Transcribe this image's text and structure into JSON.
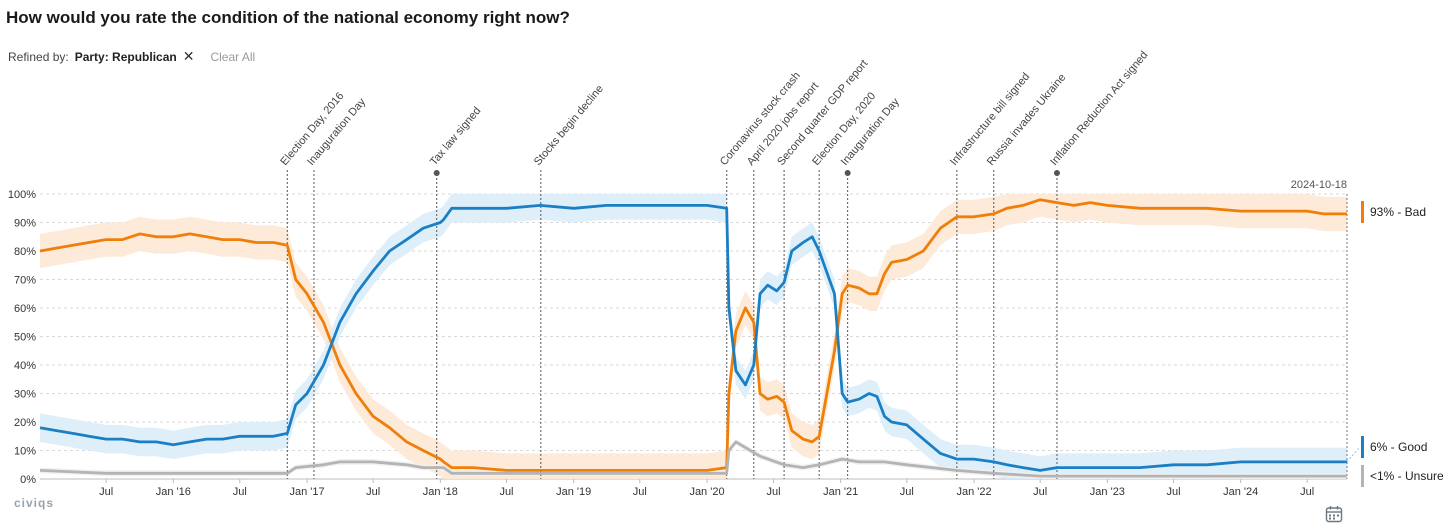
{
  "title": "How would you rate the condition of the national economy right now?",
  "filters": {
    "refined_by_label": "Refined by:",
    "chip_label": "Party: Republican",
    "clear_all": "Clear All"
  },
  "logo_text": "civiqs",
  "chart_data": {
    "type": "line",
    "x_start": "2015-01-01",
    "x_end": "2024-10-18",
    "ylim": [
      0,
      100
    ],
    "y_ticks": [
      "0%",
      "10%",
      "20%",
      "30%",
      "40%",
      "50%",
      "60%",
      "70%",
      "80%",
      "90%",
      "100%"
    ],
    "x_ticks": [
      {
        "date": "2015-07-01",
        "label": "Jul"
      },
      {
        "date": "2016-01-01",
        "label": "Jan '16"
      },
      {
        "date": "2016-07-01",
        "label": "Jul"
      },
      {
        "date": "2017-01-01",
        "label": "Jan '17"
      },
      {
        "date": "2017-07-01",
        "label": "Jul"
      },
      {
        "date": "2018-01-01",
        "label": "Jan '18"
      },
      {
        "date": "2018-07-01",
        "label": "Jul"
      },
      {
        "date": "2019-01-01",
        "label": "Jan '19"
      },
      {
        "date": "2019-07-01",
        "label": "Jul"
      },
      {
        "date": "2020-01-01",
        "label": "Jan '20"
      },
      {
        "date": "2020-07-01",
        "label": "Jul"
      },
      {
        "date": "2021-01-01",
        "label": "Jan '21"
      },
      {
        "date": "2021-07-01",
        "label": "Jul"
      },
      {
        "date": "2022-01-01",
        "label": "Jan '22"
      },
      {
        "date": "2022-07-01",
        "label": "Jul"
      },
      {
        "date": "2023-01-01",
        "label": "Jan '23"
      },
      {
        "date": "2023-07-01",
        "label": "Jul"
      },
      {
        "date": "2024-01-01",
        "label": "Jan '24"
      },
      {
        "date": "2024-07-01",
        "label": "Jul"
      }
    ],
    "events": [
      {
        "date": "2016-11-08",
        "label": "Election Day, 2016"
      },
      {
        "date": "2017-01-20",
        "label": "Inauguration Day"
      },
      {
        "date": "2017-12-22",
        "label": "Tax law signed",
        "dot": true
      },
      {
        "date": "2018-10-03",
        "label": "Stocks begin decline"
      },
      {
        "date": "2020-02-24",
        "label": "Coronavirus stock crash"
      },
      {
        "date": "2020-05-08",
        "label": "April 2020 jobs report"
      },
      {
        "date": "2020-07-30",
        "label": "Second quarter GDP report"
      },
      {
        "date": "2020-11-03",
        "label": "Election Day, 2020"
      },
      {
        "date": "2021-01-20",
        "label": "Inauguration Day",
        "dot": true
      },
      {
        "date": "2021-11-15",
        "label": "Infrastructure bill signed"
      },
      {
        "date": "2022-02-24",
        "label": "Russia invades Ukraine"
      },
      {
        "date": "2022-08-16",
        "label": "Inflation Reduction Act signed",
        "dot": true
      }
    ],
    "end_marker_label": "2024-10-18",
    "series": [
      {
        "name": "Bad",
        "end_label": "93% - Bad",
        "color": "#f07f09",
        "band_color": "#fde8d4",
        "band": 6,
        "points": [
          [
            "2015-01-01",
            80
          ],
          [
            "2015-02-15",
            81
          ],
          [
            "2015-04-01",
            82
          ],
          [
            "2015-05-15",
            83
          ],
          [
            "2015-07-01",
            84
          ],
          [
            "2015-08-15",
            84
          ],
          [
            "2015-10-01",
            86
          ],
          [
            "2015-11-15",
            85
          ],
          [
            "2016-01-01",
            85
          ],
          [
            "2016-02-15",
            86
          ],
          [
            "2016-04-01",
            85
          ],
          [
            "2016-05-15",
            84
          ],
          [
            "2016-07-01",
            84
          ],
          [
            "2016-08-15",
            83
          ],
          [
            "2016-10-01",
            83
          ],
          [
            "2016-11-08",
            82
          ],
          [
            "2016-12-01",
            70
          ],
          [
            "2017-01-01",
            65
          ],
          [
            "2017-02-15",
            55
          ],
          [
            "2017-04-01",
            40
          ],
          [
            "2017-05-15",
            30
          ],
          [
            "2017-07-01",
            22
          ],
          [
            "2017-08-15",
            18
          ],
          [
            "2017-10-01",
            13
          ],
          [
            "2017-11-15",
            10
          ],
          [
            "2018-01-01",
            7
          ],
          [
            "2018-01-10",
            6
          ],
          [
            "2018-02-01",
            4
          ],
          [
            "2018-04-01",
            4
          ],
          [
            "2018-07-01",
            3
          ],
          [
            "2018-10-01",
            3
          ],
          [
            "2019-01-01",
            3
          ],
          [
            "2019-04-01",
            3
          ],
          [
            "2019-07-01",
            3
          ],
          [
            "2019-10-01",
            3
          ],
          [
            "2020-01-01",
            3
          ],
          [
            "2020-02-24",
            4
          ],
          [
            "2020-03-01",
            30
          ],
          [
            "2020-03-20",
            52
          ],
          [
            "2020-04-15",
            60
          ],
          [
            "2020-05-08",
            55
          ],
          [
            "2020-05-25",
            30
          ],
          [
            "2020-06-15",
            28
          ],
          [
            "2020-07-10",
            29
          ],
          [
            "2020-07-30",
            27
          ],
          [
            "2020-08-20",
            17
          ],
          [
            "2020-09-20",
            14
          ],
          [
            "2020-10-15",
            13
          ],
          [
            "2020-11-03",
            15
          ],
          [
            "2020-12-15",
            45
          ],
          [
            "2021-01-05",
            65
          ],
          [
            "2021-01-20",
            68
          ],
          [
            "2021-02-20",
            67
          ],
          [
            "2021-03-20",
            65
          ],
          [
            "2021-04-10",
            65
          ],
          [
            "2021-05-01",
            72
          ],
          [
            "2021-05-20",
            76
          ],
          [
            "2021-07-01",
            77
          ],
          [
            "2021-08-15",
            80
          ],
          [
            "2021-10-01",
            88
          ],
          [
            "2021-11-15",
            92
          ],
          [
            "2022-01-01",
            92
          ],
          [
            "2022-02-24",
            93
          ],
          [
            "2022-04-01",
            95
          ],
          [
            "2022-05-15",
            96
          ],
          [
            "2022-07-01",
            98
          ],
          [
            "2022-08-16",
            97
          ],
          [
            "2022-10-01",
            96
          ],
          [
            "2022-11-15",
            97
          ],
          [
            "2023-01-01",
            96
          ],
          [
            "2023-04-01",
            95
          ],
          [
            "2023-07-01",
            95
          ],
          [
            "2023-10-01",
            95
          ],
          [
            "2024-01-01",
            94
          ],
          [
            "2024-04-01",
            94
          ],
          [
            "2024-07-01",
            94
          ],
          [
            "2024-08-15",
            93
          ],
          [
            "2024-10-18",
            93
          ]
        ]
      },
      {
        "name": "Good",
        "end_label": "6% - Good",
        "color": "#1b7fc4",
        "band_color": "#dcedf9",
        "band": 5,
        "points": [
          [
            "2015-01-01",
            18
          ],
          [
            "2015-02-15",
            17
          ],
          [
            "2015-04-01",
            16
          ],
          [
            "2015-05-15",
            15
          ],
          [
            "2015-07-01",
            14
          ],
          [
            "2015-08-15",
            14
          ],
          [
            "2015-10-01",
            13
          ],
          [
            "2015-11-15",
            13
          ],
          [
            "2016-01-01",
            12
          ],
          [
            "2016-02-15",
            13
          ],
          [
            "2016-04-01",
            14
          ],
          [
            "2016-05-15",
            14
          ],
          [
            "2016-07-01",
            15
          ],
          [
            "2016-08-15",
            15
          ],
          [
            "2016-10-01",
            15
          ],
          [
            "2016-11-08",
            16
          ],
          [
            "2016-12-01",
            26
          ],
          [
            "2017-01-01",
            30
          ],
          [
            "2017-02-15",
            40
          ],
          [
            "2017-04-01",
            55
          ],
          [
            "2017-05-15",
            65
          ],
          [
            "2017-07-01",
            73
          ],
          [
            "2017-08-15",
            80
          ],
          [
            "2017-10-01",
            84
          ],
          [
            "2017-11-15",
            88
          ],
          [
            "2018-01-01",
            90
          ],
          [
            "2018-01-10",
            91
          ],
          [
            "2018-02-01",
            95
          ],
          [
            "2018-04-01",
            95
          ],
          [
            "2018-07-01",
            95
          ],
          [
            "2018-10-01",
            96
          ],
          [
            "2019-01-01",
            95
          ],
          [
            "2019-04-01",
            96
          ],
          [
            "2019-07-01",
            96
          ],
          [
            "2019-10-01",
            96
          ],
          [
            "2020-01-01",
            96
          ],
          [
            "2020-02-24",
            95
          ],
          [
            "2020-03-01",
            60
          ],
          [
            "2020-03-20",
            38
          ],
          [
            "2020-04-15",
            33
          ],
          [
            "2020-05-08",
            40
          ],
          [
            "2020-05-25",
            65
          ],
          [
            "2020-06-15",
            68
          ],
          [
            "2020-07-10",
            66
          ],
          [
            "2020-07-30",
            69
          ],
          [
            "2020-08-20",
            80
          ],
          [
            "2020-09-20",
            83
          ],
          [
            "2020-10-15",
            85
          ],
          [
            "2020-11-03",
            80
          ],
          [
            "2020-12-15",
            65
          ],
          [
            "2021-01-05",
            30
          ],
          [
            "2021-01-20",
            27
          ],
          [
            "2021-02-20",
            28
          ],
          [
            "2021-03-20",
            30
          ],
          [
            "2021-04-10",
            29
          ],
          [
            "2021-05-01",
            22
          ],
          [
            "2021-05-20",
            20
          ],
          [
            "2021-07-01",
            19
          ],
          [
            "2021-08-15",
            14
          ],
          [
            "2021-10-01",
            9
          ],
          [
            "2021-11-15",
            7
          ],
          [
            "2022-01-01",
            7
          ],
          [
            "2022-02-24",
            6
          ],
          [
            "2022-04-01",
            5
          ],
          [
            "2022-05-15",
            4
          ],
          [
            "2022-07-01",
            3
          ],
          [
            "2022-08-16",
            4
          ],
          [
            "2022-10-01",
            4
          ],
          [
            "2022-11-15",
            4
          ],
          [
            "2023-01-01",
            4
          ],
          [
            "2023-04-01",
            4
          ],
          [
            "2023-07-01",
            5
          ],
          [
            "2023-10-01",
            5
          ],
          [
            "2024-01-01",
            6
          ],
          [
            "2024-04-01",
            6
          ],
          [
            "2024-07-01",
            6
          ],
          [
            "2024-08-15",
            6
          ],
          [
            "2024-10-18",
            6
          ]
        ]
      },
      {
        "name": "Unsure",
        "end_label": "<1% - Unsure",
        "color": "#b4b4b4",
        "band_color": "#efefef",
        "band": 1,
        "points": [
          [
            "2015-01-01",
            3
          ],
          [
            "2015-07-01",
            2
          ],
          [
            "2016-01-01",
            2
          ],
          [
            "2016-07-01",
            2
          ],
          [
            "2016-11-08",
            2
          ],
          [
            "2016-12-01",
            4
          ],
          [
            "2017-02-15",
            5
          ],
          [
            "2017-04-01",
            6
          ],
          [
            "2017-05-15",
            6
          ],
          [
            "2017-07-01",
            6
          ],
          [
            "2017-10-01",
            5
          ],
          [
            "2017-11-15",
            4
          ],
          [
            "2018-01-10",
            4
          ],
          [
            "2018-02-01",
            2
          ],
          [
            "2018-07-01",
            2
          ],
          [
            "2019-01-01",
            2
          ],
          [
            "2019-07-01",
            2
          ],
          [
            "2020-01-01",
            2
          ],
          [
            "2020-02-24",
            2
          ],
          [
            "2020-03-01",
            10
          ],
          [
            "2020-03-20",
            13
          ],
          [
            "2020-04-15",
            11
          ],
          [
            "2020-05-25",
            8
          ],
          [
            "2020-07-30",
            5
          ],
          [
            "2020-09-20",
            4
          ],
          [
            "2020-11-03",
            5
          ],
          [
            "2021-01-05",
            7
          ],
          [
            "2021-02-20",
            6
          ],
          [
            "2021-05-01",
            6
          ],
          [
            "2021-07-01",
            5
          ],
          [
            "2021-11-15",
            3
          ],
          [
            "2022-02-24",
            2
          ],
          [
            "2022-07-01",
            1
          ],
          [
            "2023-01-01",
            1
          ],
          [
            "2024-01-01",
            1
          ],
          [
            "2024-10-18",
            1
          ]
        ]
      }
    ]
  }
}
